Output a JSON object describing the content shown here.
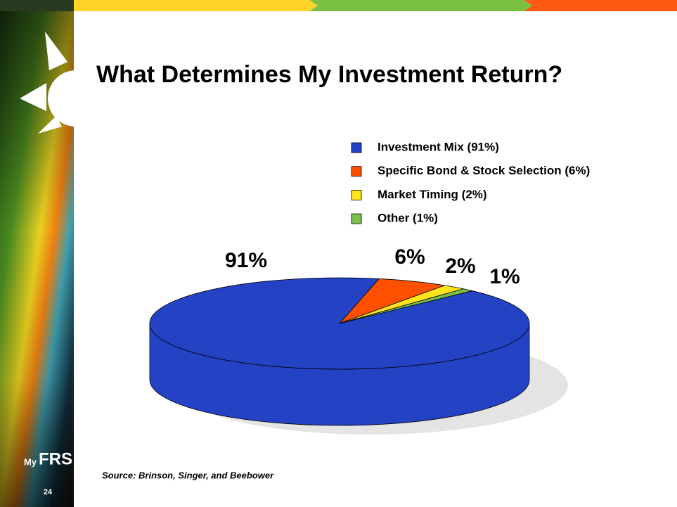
{
  "chart_data": {
    "type": "pie",
    "title": "What Determines My Investment Return?",
    "categories": [
      "Investment Mix (91%)",
      "Specific Bond & Stock Selection (6%)",
      "Market Timing (2%)",
      "Other (1%)"
    ],
    "values": [
      91,
      6,
      2,
      1
    ],
    "value_labels": [
      "91%",
      "6%",
      "2%",
      "1%"
    ],
    "colors": [
      "#2342c4",
      "#ff5000",
      "#ffe41c",
      "#7cc04a"
    ],
    "source": "Source:  Brinson, Singer, and Beebower"
  },
  "logo": {
    "prefix": "My",
    "name": "FRS"
  },
  "slide_number": "24"
}
